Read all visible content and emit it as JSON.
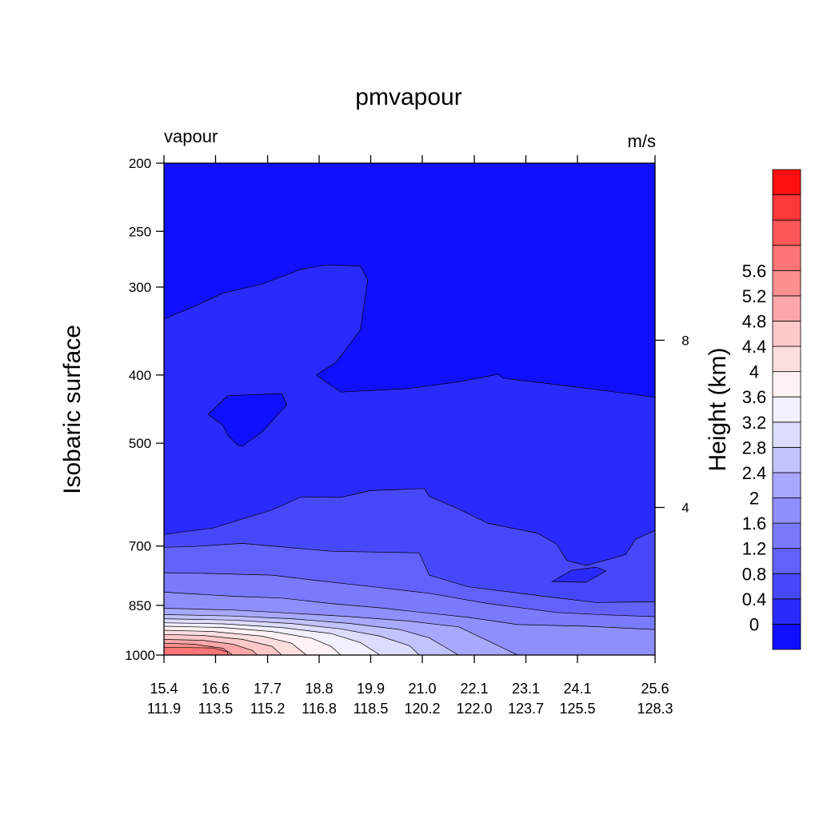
{
  "chart_data": {
    "type": "heatmap",
    "title": "pmvapour",
    "left_corner_label": "vapour",
    "right_corner_label": "m/s",
    "ylabel": "Isobaric surface",
    "y_axis": {
      "scale": "log",
      "ylim": [
        1000,
        200
      ],
      "ticks": [
        200,
        250,
        300,
        400,
        500,
        700,
        850,
        1000
      ]
    },
    "right_axis": {
      "label": "Height (km)",
      "ticks": [
        {
          "label": "8",
          "pressure": 357
        },
        {
          "label": "4",
          "pressure": 617
        }
      ]
    },
    "x_axis": {
      "ticks": [
        {
          "lat": "15.4",
          "lon": "111.9",
          "pos": 0.0
        },
        {
          "lat": "16.6",
          "lon": "113.5",
          "pos": 0.105
        },
        {
          "lat": "17.7",
          "lon": "115.2",
          "pos": 0.211
        },
        {
          "lat": "18.8",
          "lon": "116.8",
          "pos": 0.316
        },
        {
          "lat": "19.9",
          "lon": "118.5",
          "pos": 0.421
        },
        {
          "lat": "21.0",
          "lon": "120.2",
          "pos": 0.526
        },
        {
          "lat": "22.1",
          "lon": "122.0",
          "pos": 0.632
        },
        {
          "lat": "23.1",
          "lon": "123.7",
          "pos": 0.737
        },
        {
          "lat": "24.1",
          "lon": "125.5",
          "pos": 0.842
        },
        {
          "lat": "25.6",
          "lon": "128.3",
          "pos": 1.0
        }
      ]
    },
    "colorbar": {
      "levels": [
        0,
        0.4,
        0.8,
        1.2,
        1.6,
        2,
        2.4,
        2.8,
        3.2,
        3.6,
        4,
        4.4,
        4.8,
        5.2,
        5.6
      ],
      "labels": [
        "0",
        "0.4",
        "0.8",
        "1.2",
        "1.6",
        "2",
        "2.4",
        "2.8",
        "3.2",
        "3.6",
        "4",
        "4.4",
        "4.8",
        "5.2",
        "5.6"
      ],
      "colors": [
        "#1010ff",
        "#2a2afd",
        "#4848fb",
        "#6262fb",
        "#7a7afc",
        "#8f8ffc",
        "#a8a8fc",
        "#c2c2fc",
        "#dcdcfc",
        "#f0f0fe",
        "#fff2f2",
        "#fddede",
        "#fcc8c8",
        "#fca8a8",
        "#fc8f8f",
        "#fc7676",
        "#fc5858",
        "#fc3838",
        "#ff1010"
      ]
    },
    "contours": [
      {
        "level": 0,
        "color": "#2a2afd",
        "boundary": [
          [
            0.0,
            333
          ],
          [
            0.06,
            320
          ],
          [
            0.12,
            306
          ],
          [
            0.2,
            297
          ],
          [
            0.28,
            283
          ],
          [
            0.33,
            279
          ],
          [
            0.4,
            280
          ],
          [
            0.415,
            293
          ],
          [
            0.4,
            345
          ],
          [
            0.35,
            384
          ],
          [
            0.31,
            400
          ],
          [
            0.36,
            423
          ],
          [
            0.5,
            418
          ],
          [
            0.6,
            409
          ],
          [
            0.68,
            399
          ],
          [
            0.69,
            404
          ],
          [
            0.84,
            416
          ],
          [
            1.0,
            430
          ]
        ],
        "island": [
          [
            0.09,
            455
          ],
          [
            0.13,
            428
          ],
          [
            0.24,
            425
          ],
          [
            0.25,
            441
          ],
          [
            0.2,
            482
          ],
          [
            0.16,
            505
          ],
          [
            0.15,
            503
          ],
          [
            0.13,
            487
          ],
          [
            0.12,
            472
          ]
        ]
      },
      {
        "level": 0.4,
        "color": "#4848fb",
        "boundary": [
          [
            0.0,
            674
          ],
          [
            0.1,
            660
          ],
          [
            0.22,
            622
          ],
          [
            0.28,
            596
          ],
          [
            0.36,
            597
          ],
          [
            0.42,
            584
          ],
          [
            0.53,
            580
          ],
          [
            0.54,
            595
          ],
          [
            0.6,
            620
          ],
          [
            0.66,
            650
          ],
          [
            0.76,
            671
          ],
          [
            0.8,
            696
          ],
          [
            0.82,
            734
          ],
          [
            0.86,
            746
          ],
          [
            0.94,
            720
          ],
          [
            0.96,
            685
          ],
          [
            1.0,
            665
          ]
        ],
        "hole": [
          [
            0.79,
            786
          ],
          [
            0.83,
            758
          ],
          [
            0.88,
            750
          ],
          [
            0.9,
            760
          ],
          [
            0.86,
            788
          ]
        ]
      },
      {
        "level": 0.8,
        "color": "#6262fb",
        "boundary": [
          [
            0.0,
            703
          ],
          [
            0.06,
            701
          ],
          [
            0.16,
            694
          ],
          [
            0.26,
            704
          ],
          [
            0.34,
            712
          ],
          [
            0.52,
            716
          ],
          [
            0.54,
            770
          ],
          [
            0.62,
            800
          ],
          [
            0.78,
            826
          ],
          [
            0.88,
            842
          ],
          [
            1.0,
            840
          ]
        ]
      },
      {
        "level": 1.2,
        "color": "#7a7afc",
        "boundary": [
          [
            0.0,
            764
          ],
          [
            0.1,
            766
          ],
          [
            0.22,
            770
          ],
          [
            0.3,
            782
          ],
          [
            0.44,
            802
          ],
          [
            0.54,
            817
          ],
          [
            0.66,
            845
          ],
          [
            0.8,
            870
          ],
          [
            0.9,
            877
          ],
          [
            1.0,
            882
          ]
        ]
      },
      {
        "level": 1.6,
        "color": "#8f8ffc",
        "boundary": [
          [
            0.0,
            814
          ],
          [
            0.14,
            825
          ],
          [
            0.24,
            830
          ],
          [
            0.34,
            845
          ],
          [
            0.44,
            857
          ],
          [
            0.54,
            872
          ],
          [
            0.62,
            884
          ],
          [
            0.72,
            905
          ],
          [
            0.86,
            910
          ],
          [
            1.0,
            920
          ]
        ]
      },
      {
        "level": 2,
        "color": "#a8a8fc",
        "boundary": [
          [
            0.0,
            858
          ],
          [
            0.14,
            863
          ],
          [
            0.26,
            872
          ],
          [
            0.38,
            882
          ],
          [
            0.5,
            895
          ],
          [
            0.6,
            912
          ],
          [
            0.64,
            940
          ],
          [
            0.72,
            1000
          ]
        ]
      },
      {
        "level": 2.4,
        "color": "#c2c2fc",
        "boundary": [
          [
            0.0,
            876
          ],
          [
            0.14,
            880
          ],
          [
            0.26,
            888
          ],
          [
            0.38,
            902
          ],
          [
            0.48,
            920
          ],
          [
            0.54,
            945
          ],
          [
            0.6,
            1000
          ]
        ]
      },
      {
        "level": 2.8,
        "color": "#dcdcfc",
        "boundary": [
          [
            0.0,
            888
          ],
          [
            0.14,
            892
          ],
          [
            0.26,
            902
          ],
          [
            0.36,
            918
          ],
          [
            0.44,
            940
          ],
          [
            0.5,
            970
          ],
          [
            0.52,
            1000
          ]
        ]
      },
      {
        "level": 3.2,
        "color": "#f0f0fe",
        "boundary": [
          [
            0.0,
            900
          ],
          [
            0.12,
            903
          ],
          [
            0.24,
            914
          ],
          [
            0.34,
            932
          ],
          [
            0.4,
            960
          ],
          [
            0.44,
            1000
          ]
        ]
      },
      {
        "level": 3.6,
        "color": "#fff2f2",
        "boundary": [
          [
            0.0,
            910
          ],
          [
            0.12,
            914
          ],
          [
            0.22,
            926
          ],
          [
            0.3,
            946
          ],
          [
            0.34,
            972
          ],
          [
            0.36,
            1000
          ]
        ]
      },
      {
        "level": 4,
        "color": "#fddede",
        "boundary": [
          [
            0.0,
            922
          ],
          [
            0.1,
            926
          ],
          [
            0.2,
            940
          ],
          [
            0.26,
            962
          ],
          [
            0.29,
            1000
          ]
        ]
      },
      {
        "level": 4.4,
        "color": "#fcc8c8",
        "boundary": [
          [
            0.0,
            935
          ],
          [
            0.08,
            938
          ],
          [
            0.16,
            950
          ],
          [
            0.22,
            972
          ],
          [
            0.24,
            1000
          ]
        ]
      },
      {
        "level": 4.8,
        "color": "#fca8a8",
        "boundary": [
          [
            0.0,
            950
          ],
          [
            0.08,
            953
          ],
          [
            0.14,
            965
          ],
          [
            0.18,
            985
          ],
          [
            0.19,
            1000
          ]
        ]
      },
      {
        "level": 5.2,
        "color": "#fc8f8f",
        "boundary": [
          [
            0.0,
            962
          ],
          [
            0.06,
            965
          ],
          [
            0.12,
            978
          ],
          [
            0.14,
            1000
          ]
        ]
      },
      {
        "level": 5.6,
        "color": "#fc7676",
        "boundary": [
          [
            0.0,
            975
          ],
          [
            0.1,
            977
          ],
          [
            0.13,
            990
          ],
          [
            0.13,
            1000
          ]
        ]
      }
    ]
  }
}
